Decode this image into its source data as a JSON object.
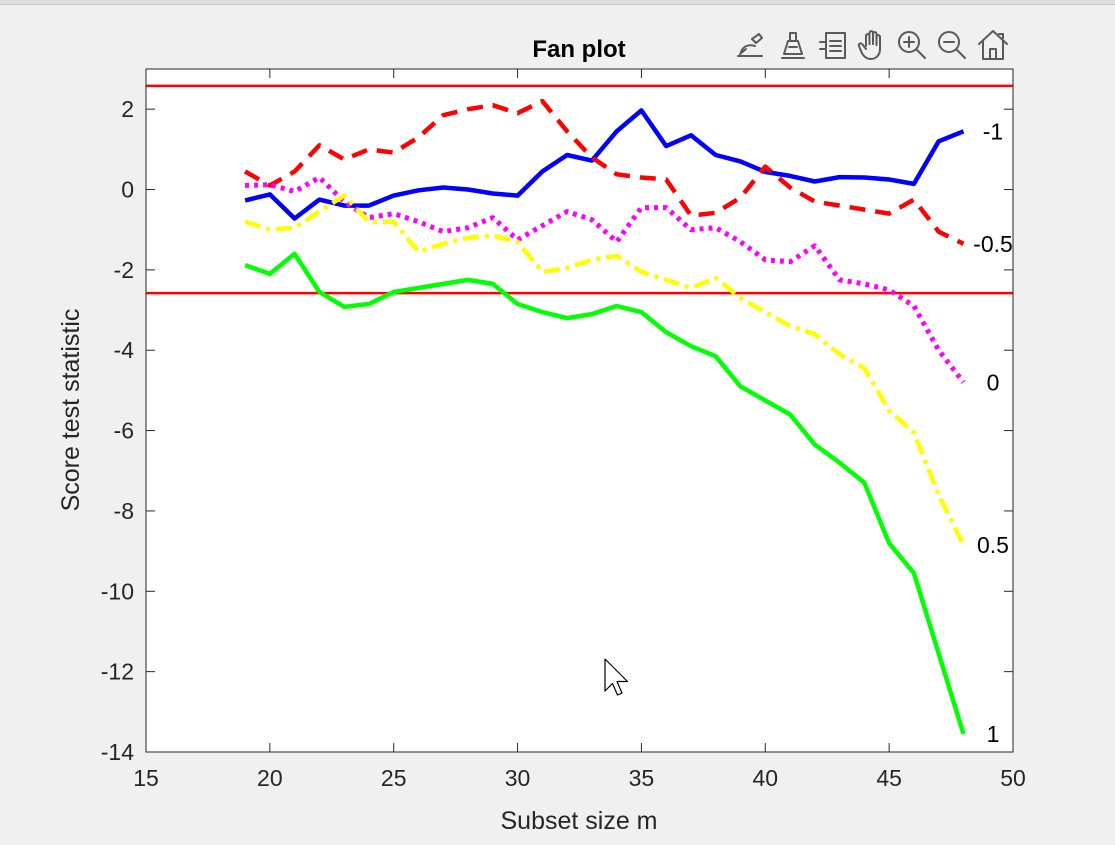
{
  "window": {
    "background": "#f0f0f0"
  },
  "toolbar": {
    "items": [
      {
        "name": "brush-icon",
        "label": "Brush"
      },
      {
        "name": "data-cursor-icon",
        "label": "Data tips"
      },
      {
        "name": "legend-icon",
        "label": "Legend"
      },
      {
        "name": "pan-icon",
        "label": "Pan"
      },
      {
        "name": "zoom-in-icon",
        "label": "Zoom in"
      },
      {
        "name": "zoom-out-icon",
        "label": "Zoom out"
      },
      {
        "name": "home-icon",
        "label": "Restore view"
      }
    ]
  },
  "chart_data": {
    "type": "line",
    "title": "Fan plot",
    "xlabel": "Subset size m",
    "ylabel": "Score test statistic",
    "xlim": [
      15,
      50
    ],
    "ylim": [
      -14,
      3
    ],
    "xticks": [
      15,
      20,
      25,
      30,
      35,
      40,
      45,
      50
    ],
    "yticks": [
      2,
      0,
      -2,
      -4,
      -6,
      -8,
      -10,
      -12,
      -14
    ],
    "grid": false,
    "reference_lines": [
      {
        "y": 2.58,
        "color": "#ff0000"
      },
      {
        "y": -2.58,
        "color": "#ff0000"
      }
    ],
    "x": [
      19,
      20,
      21,
      22,
      23,
      24,
      25,
      26,
      27,
      28,
      29,
      30,
      31,
      32,
      33,
      34,
      35,
      36,
      37,
      38,
      39,
      40,
      41,
      42,
      43,
      44,
      45,
      46,
      47,
      48
    ],
    "series": [
      {
        "name": "-1",
        "color": "#0000ff",
        "style": "solid",
        "values": [
          -0.27,
          -0.12,
          -0.72,
          -0.25,
          -0.4,
          -0.4,
          -0.15,
          -0.02,
          0.05,
          0.0,
          -0.1,
          -0.15,
          0.45,
          0.86,
          0.72,
          1.45,
          1.97,
          1.08,
          1.35,
          0.86,
          0.7,
          0.44,
          0.34,
          0.2,
          0.31,
          0.3,
          0.25,
          0.14,
          1.2,
          1.45
        ]
      },
      {
        "name": "-0.5",
        "color": "#ff0000",
        "style": "dashed",
        "values": [
          0.45,
          0.1,
          0.45,
          1.1,
          0.75,
          1.0,
          0.92,
          1.3,
          1.85,
          2.0,
          2.1,
          1.9,
          2.2,
          1.45,
          0.8,
          0.38,
          0.3,
          0.25,
          -0.65,
          -0.58,
          -0.2,
          0.57,
          0.05,
          -0.3,
          -0.4,
          -0.5,
          -0.6,
          -0.25,
          -1.05,
          -1.35
        ]
      },
      {
        "name": "0",
        "color": "#ff00ff",
        "style": "dotted",
        "values": [
          0.1,
          0.12,
          -0.05,
          0.3,
          -0.3,
          -0.7,
          -0.6,
          -0.8,
          -1.05,
          -0.95,
          -0.7,
          -1.25,
          -0.9,
          -0.55,
          -0.75,
          -1.3,
          -0.45,
          -0.45,
          -1.0,
          -0.95,
          -1.3,
          -1.75,
          -1.8,
          -1.4,
          -2.25,
          -2.35,
          -2.5,
          -2.9,
          -4.0,
          -4.8
        ]
      },
      {
        "name": "0.5",
        "color": "#ffff00",
        "style": "dashdot",
        "values": [
          -0.8,
          -1.0,
          -0.95,
          -0.55,
          -0.15,
          -0.8,
          -0.8,
          -1.55,
          -1.35,
          -1.2,
          -1.15,
          -1.3,
          -2.05,
          -1.95,
          -1.75,
          -1.65,
          -2.05,
          -2.25,
          -2.45,
          -2.2,
          -2.7,
          -3.05,
          -3.4,
          -3.6,
          -4.1,
          -4.45,
          -5.5,
          -6.05,
          -7.6,
          -8.85
        ]
      },
      {
        "name": "1",
        "color": "#00ff00",
        "style": "solid",
        "values": [
          -1.88,
          -2.1,
          -1.6,
          -2.55,
          -2.92,
          -2.85,
          -2.55,
          -2.45,
          -2.35,
          -2.25,
          -2.35,
          -2.85,
          -3.05,
          -3.2,
          -3.1,
          -2.9,
          -3.05,
          -3.55,
          -3.9,
          -4.15,
          -4.9,
          -5.25,
          -5.6,
          -6.35,
          -6.8,
          -7.3,
          -8.8,
          -9.55,
          -11.55,
          -13.55
        ]
      }
    ]
  }
}
